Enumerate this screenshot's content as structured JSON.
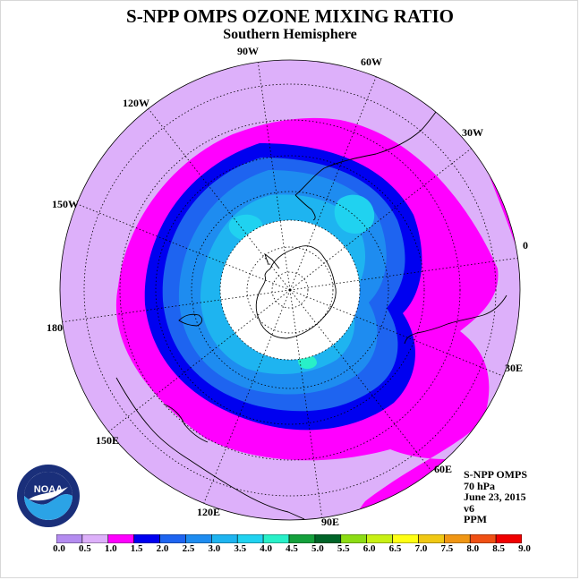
{
  "title": "S-NPP OMPS OZONE MIXING RATIO",
  "subtitle": "Southern Hemisphere",
  "info": {
    "instrument": "S-NPP OMPS",
    "level": "70 hPa",
    "date": "June 23, 2015",
    "version": "v6",
    "units": "PPM"
  },
  "logo": {
    "text": "NOAA",
    "colors": {
      "navy": "#1a2f7a",
      "sky": "#2ba3e6",
      "white": "#ffffff"
    }
  },
  "longitude_labels": [
    "90W",
    "60W",
    "30W",
    "0",
    "30E",
    "60E",
    "90E",
    "120E",
    "150E",
    "180",
    "150W",
    "120W"
  ],
  "colorbar": {
    "ticks": [
      "0.0",
      "0.5",
      "1.0",
      "1.5",
      "2.0",
      "2.5",
      "3.0",
      "3.5",
      "4.0",
      "4.5",
      "5.0",
      "5.5",
      "6.0",
      "6.5",
      "7.0",
      "7.5",
      "8.0",
      "8.5",
      "9.0"
    ],
    "colors": [
      "#b48cf0",
      "#ddb0fa",
      "#ff00ff",
      "#0000f0",
      "#1e64f0",
      "#1e8cf0",
      "#1eb4f0",
      "#20d2f0",
      "#28f0c8",
      "#14a03c",
      "#006428",
      "#8cdc14",
      "#c8f014",
      "#ffff14",
      "#f0c814",
      "#f09614",
      "#f05014",
      "#f00000",
      "#8c5a3c"
    ]
  },
  "map_colors": {
    "bin_0_5_1_0": "#ddb0fa",
    "bin_1_0_1_5": "#ff00ff",
    "bin_1_5_2_0": "#0000f0",
    "bin_2_0_2_5": "#1e64f0",
    "bin_2_5_3_0": "#1e8cf0",
    "bin_3_0_3_5": "#1eb4f0",
    "bin_3_5_4_0": "#20d2f0",
    "bin_4_0_4_5": "#28f0c8",
    "no_data": "#ffffff"
  }
}
